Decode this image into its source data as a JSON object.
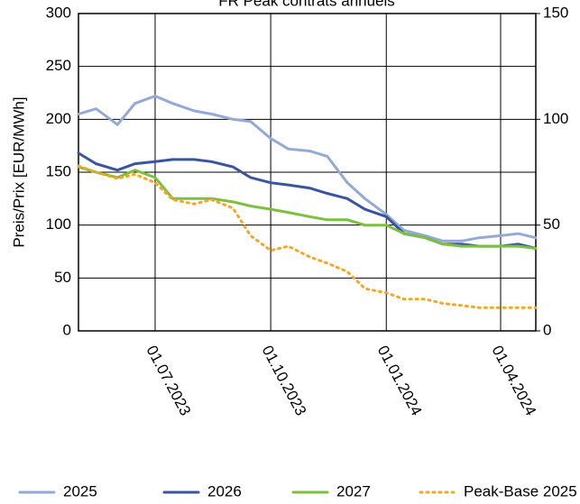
{
  "chart_data": {
    "type": "line",
    "title": "FR Peak contrats annuels",
    "y_label": "Preis/Prix [EUR/MWh]",
    "x": [
      "01.05.2023",
      "15.05.2023",
      "01.06.2023",
      "15.06.2023",
      "01.07.2023",
      "15.07.2023",
      "01.08.2023",
      "15.08.2023",
      "01.09.2023",
      "15.09.2023",
      "01.10.2023",
      "15.10.2023",
      "01.11.2023",
      "15.11.2023",
      "01.12.2023",
      "15.12.2023",
      "01.01.2024",
      "15.01.2024",
      "01.02.2024",
      "15.02.2024",
      "01.03.2024",
      "15.03.2024",
      "01.04.2024",
      "15.04.2024",
      "29.04.2024"
    ],
    "series": [
      {
        "name": "2025",
        "color": "#94a9d6",
        "dash": false,
        "values": [
          205,
          210,
          195,
          215,
          222,
          215,
          208,
          205,
          200,
          198,
          182,
          172,
          170,
          165,
          140,
          125,
          110,
          95,
          90,
          85,
          85,
          88,
          90,
          92,
          88
        ]
      },
      {
        "name": "2026",
        "color": "#3a54a0",
        "dash": false,
        "values": [
          168,
          158,
          152,
          158,
          160,
          162,
          162,
          160,
          155,
          145,
          140,
          138,
          135,
          130,
          125,
          115,
          108,
          92,
          88,
          82,
          82,
          80,
          80,
          82,
          78
        ]
      },
      {
        "name": "2027",
        "color": "#7dbf3f",
        "dash": false,
        "values": [
          155,
          150,
          145,
          152,
          145,
          125,
          125,
          125,
          122,
          118,
          115,
          112,
          108,
          105,
          105,
          100,
          100,
          92,
          88,
          82,
          80,
          80,
          80,
          80,
          78
        ]
      },
      {
        "name": "Peak-Base 2025",
        "color": "#f5a623",
        "dash": true,
        "axis": "y2",
        "values": [
          78,
          75,
          72,
          74,
          70,
          62,
          60,
          62,
          58,
          45,
          38,
          40,
          35,
          32,
          28,
          20,
          18,
          15,
          15,
          13,
          12,
          11,
          11,
          11,
          11
        ]
      }
    ],
    "xlim": [
      "01.05.2023",
      "29.04.2024"
    ],
    "xticks": [
      "01.07.2023",
      "01.10.2023",
      "01.01.2024",
      "01.04.2024"
    ],
    "ylim": [
      0,
      300
    ],
    "yticks": [
      0,
      50,
      100,
      150,
      200,
      250,
      300
    ],
    "y2lim": [
      0,
      150
    ],
    "y2ticks": [
      0,
      50,
      100,
      150
    ],
    "grid": true,
    "legend": "bottom"
  }
}
